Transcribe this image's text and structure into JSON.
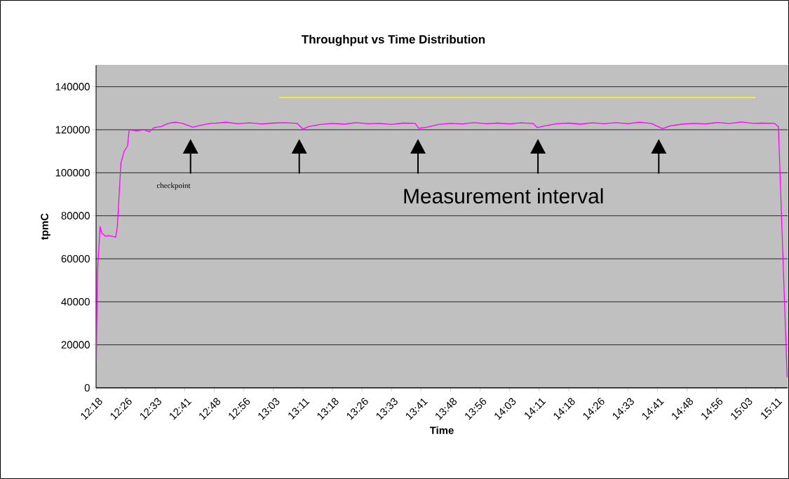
{
  "chart_data": {
    "type": "line",
    "title": "Throughput vs Time Distribution",
    "xlabel": "Time",
    "ylabel": "tpmC",
    "annotations": [
      "checkpoint",
      "Measurement interval"
    ],
    "xlim": [
      12.3,
      15.226
    ],
    "ylim": [
      0,
      150000
    ],
    "xticks": [
      {
        "value": 12.3,
        "label": "12:18"
      },
      {
        "value": 12.425,
        "label": "12:26"
      },
      {
        "value": 12.55,
        "label": "12:33"
      },
      {
        "value": 12.675,
        "label": "12:41"
      },
      {
        "value": 12.8,
        "label": "12:48"
      },
      {
        "value": 12.925,
        "label": "12:56"
      },
      {
        "value": 13.05,
        "label": "13:03"
      },
      {
        "value": 13.175,
        "label": "13:11"
      },
      {
        "value": 13.3,
        "label": "13:18"
      },
      {
        "value": 13.425,
        "label": "13:26"
      },
      {
        "value": 13.55,
        "label": "13:33"
      },
      {
        "value": 13.675,
        "label": "13:41"
      },
      {
        "value": 13.8,
        "label": "13:48"
      },
      {
        "value": 13.925,
        "label": "13:56"
      },
      {
        "value": 14.05,
        "label": "14:03"
      },
      {
        "value": 14.175,
        "label": "14:11"
      },
      {
        "value": 14.3,
        "label": "14:18"
      },
      {
        "value": 14.425,
        "label": "14:26"
      },
      {
        "value": 14.55,
        "label": "14:33"
      },
      {
        "value": 14.675,
        "label": "14:41"
      },
      {
        "value": 14.8,
        "label": "14:48"
      },
      {
        "value": 14.925,
        "label": "14:56"
      },
      {
        "value": 15.05,
        "label": "15:03"
      },
      {
        "value": 15.175,
        "label": "15:11"
      }
    ],
    "yticks": [
      0,
      20000,
      40000,
      60000,
      80000,
      100000,
      120000,
      140000
    ],
    "grid": "y",
    "marker": "none",
    "line_style": "solid",
    "series": [
      {
        "color": "#ff00ff",
        "x": [
          12.301,
          12.306,
          12.317,
          12.324,
          12.339,
          12.353,
          12.368,
          12.383,
          12.39,
          12.405,
          12.419,
          12.433,
          12.44,
          12.472,
          12.502,
          12.525,
          12.546,
          12.576,
          12.606,
          12.635,
          12.665,
          12.709,
          12.739,
          12.784,
          12.8,
          12.85,
          12.9,
          12.95,
          13.0,
          13.05,
          13.1,
          13.15,
          13.175,
          13.2,
          13.25,
          13.3,
          13.35,
          13.4,
          13.45,
          13.5,
          13.55,
          13.6,
          13.65,
          13.665,
          13.7,
          13.75,
          13.8,
          13.85,
          13.9,
          13.95,
          14.0,
          14.05,
          14.1,
          14.15,
          14.166,
          14.2,
          14.25,
          14.3,
          14.35,
          14.4,
          14.45,
          14.5,
          14.55,
          14.6,
          14.65,
          14.697,
          14.73,
          14.78,
          14.83,
          14.88,
          14.93,
          14.98,
          15.03,
          15.08,
          15.12,
          15.17,
          15.187,
          15.224
        ],
        "values": [
          12000,
          54000,
          75000,
          72000,
          70500,
          70800,
          70500,
          70000,
          75000,
          104500,
          110000,
          112500,
          120000,
          119500,
          120000,
          119000,
          121000,
          121500,
          123000,
          123500,
          123000,
          121200,
          122000,
          123000,
          123000,
          123500,
          122800,
          123200,
          122700,
          123100,
          123300,
          123000,
          120300,
          121500,
          122500,
          123000,
          122600,
          123300,
          122800,
          123000,
          122500,
          123100,
          123000,
          120700,
          121200,
          122500,
          123000,
          122700,
          123300,
          122800,
          123100,
          122700,
          123200,
          122900,
          121000,
          121800,
          122800,
          123100,
          122600,
          123200,
          122800,
          123300,
          122800,
          123500,
          122900,
          120500,
          121800,
          122600,
          123000,
          122700,
          123400,
          122900,
          123600,
          123000,
          123100,
          123000,
          121500,
          5000
        ]
      },
      {
        "color": "#ffff00",
        "x": [
          13.074,
          15.089
        ],
        "values": [
          135000,
          135000
        ]
      }
    ]
  }
}
